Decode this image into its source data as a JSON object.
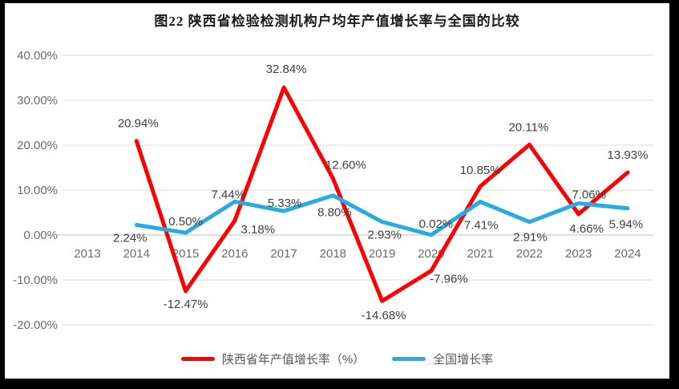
{
  "title": "图22  陕西省检验检测机构户均年产值增长率与全国的比较",
  "chart_data": {
    "type": "line",
    "title": "图22  陕西省检验检测机构户均年产值增长率与全国的比较",
    "categories": [
      "2013",
      "2014",
      "2015",
      "2016",
      "2017",
      "2018",
      "2019",
      "2020",
      "2021",
      "2022",
      "2023",
      "2024"
    ],
    "series": [
      {
        "name": "陕西省年产值增长率（%）",
        "color": "#fe0000",
        "values": [
          null,
          20.94,
          -12.47,
          3.18,
          32.84,
          12.6,
          -14.68,
          -7.96,
          10.85,
          20.11,
          4.66,
          13.93
        ],
        "labels": [
          null,
          "20.94%",
          "-12.47%",
          "3.18%",
          "32.84%",
          "12.60%",
          "-14.68%",
          "-7.96%",
          "10.85%",
          "20.11%",
          "4.66%",
          "13.93%"
        ],
        "label_offsets": [
          null,
          [
            2,
            -22
          ],
          [
            0,
            16
          ],
          [
            29,
            11
          ],
          [
            3,
            -23
          ],
          [
            16,
            -17
          ],
          [
            2,
            18
          ],
          [
            22,
            10
          ],
          [
            0,
            -20
          ],
          [
            -1,
            -22
          ],
          [
            10,
            18
          ],
          [
            0,
            -22
          ]
        ]
      },
      {
        "name": "全国增长率",
        "color": "#29abe2",
        "values": [
          null,
          2.24,
          0.5,
          7.44,
          5.33,
          8.8,
          2.93,
          0.02,
          7.41,
          2.91,
          7.06,
          5.94
        ],
        "labels": [
          null,
          "2.24%",
          "0.50%",
          "7.44%",
          "5.33%",
          "8.80%",
          "2.93%",
          "0.02%",
          "7.41%",
          "2.91%",
          "7.06%",
          "5.94%"
        ],
        "label_offsets": [
          null,
          [
            -8,
            16
          ],
          [
            0,
            -14
          ],
          [
            -8,
            -9
          ],
          [
            1,
            -10
          ],
          [
            2,
            21
          ],
          [
            3,
            16
          ],
          [
            6,
            -14
          ],
          [
            1,
            29
          ],
          [
            1,
            19
          ],
          [
            13,
            -11
          ],
          [
            -2,
            20
          ]
        ]
      }
    ],
    "ylim": [
      -20,
      40
    ],
    "ytick_step": 10,
    "yticks": [
      40,
      30,
      20,
      10,
      0,
      -10,
      -20
    ],
    "ytick_labels": [
      "40.00%",
      "30.00%",
      "20.00%",
      "10.00%",
      "0.00%",
      "-10.00%",
      "-20.00%"
    ],
    "grid": true,
    "legend_position": "bottom",
    "colors": {
      "gridline": "#d9d9d9",
      "zero_line": "#bfbfbf",
      "axis_text": "#6b6b6b",
      "data_label_text": "#3f3f3f"
    }
  }
}
